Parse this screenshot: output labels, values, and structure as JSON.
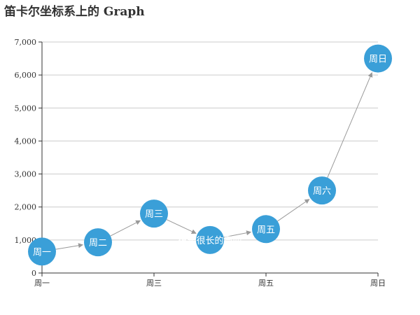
{
  "chart_data": {
    "type": "graph",
    "title": "笛卡尔坐标系上的 Graph",
    "x_categories": [
      "周一",
      "周二",
      "周三",
      "很长很长的周四",
      "周五",
      "周六",
      "周日"
    ],
    "x_tick_labels": [
      "周一",
      "周三",
      "周五",
      "周日"
    ],
    "ylim": [
      0,
      7000
    ],
    "y_ticks": [
      0,
      1000,
      2000,
      3000,
      4000,
      5000,
      6000,
      7000
    ],
    "y_tick_labels": [
      "0",
      "1,000",
      "2,000",
      "3,000",
      "4,000",
      "5,000",
      "6,000",
      "7,000"
    ],
    "grid": true,
    "nodes": [
      {
        "name": "周一",
        "value": 650
      },
      {
        "name": "周二",
        "value": 930
      },
      {
        "name": "周三",
        "value": 1800
      },
      {
        "name": "很长很长的周四",
        "value": 1000
      },
      {
        "name": "周五",
        "value": 1330
      },
      {
        "name": "周六",
        "value": 2500
      },
      {
        "name": "周日",
        "value": 6500
      }
    ],
    "edges": [
      {
        "source": "周一",
        "target": "周二"
      },
      {
        "source": "周二",
        "target": "周三"
      },
      {
        "source": "周三",
        "target": "很长很长的周四"
      },
      {
        "source": "很长很长的周四",
        "target": "周五"
      },
      {
        "source": "周五",
        "target": "周六"
      },
      {
        "source": "周六",
        "target": "周日"
      }
    ],
    "colors": {
      "node": "#3a9fd8",
      "edge": "#999999",
      "grid": "#cccccc",
      "axis": "#333333",
      "node_text": "#ffffff"
    }
  }
}
